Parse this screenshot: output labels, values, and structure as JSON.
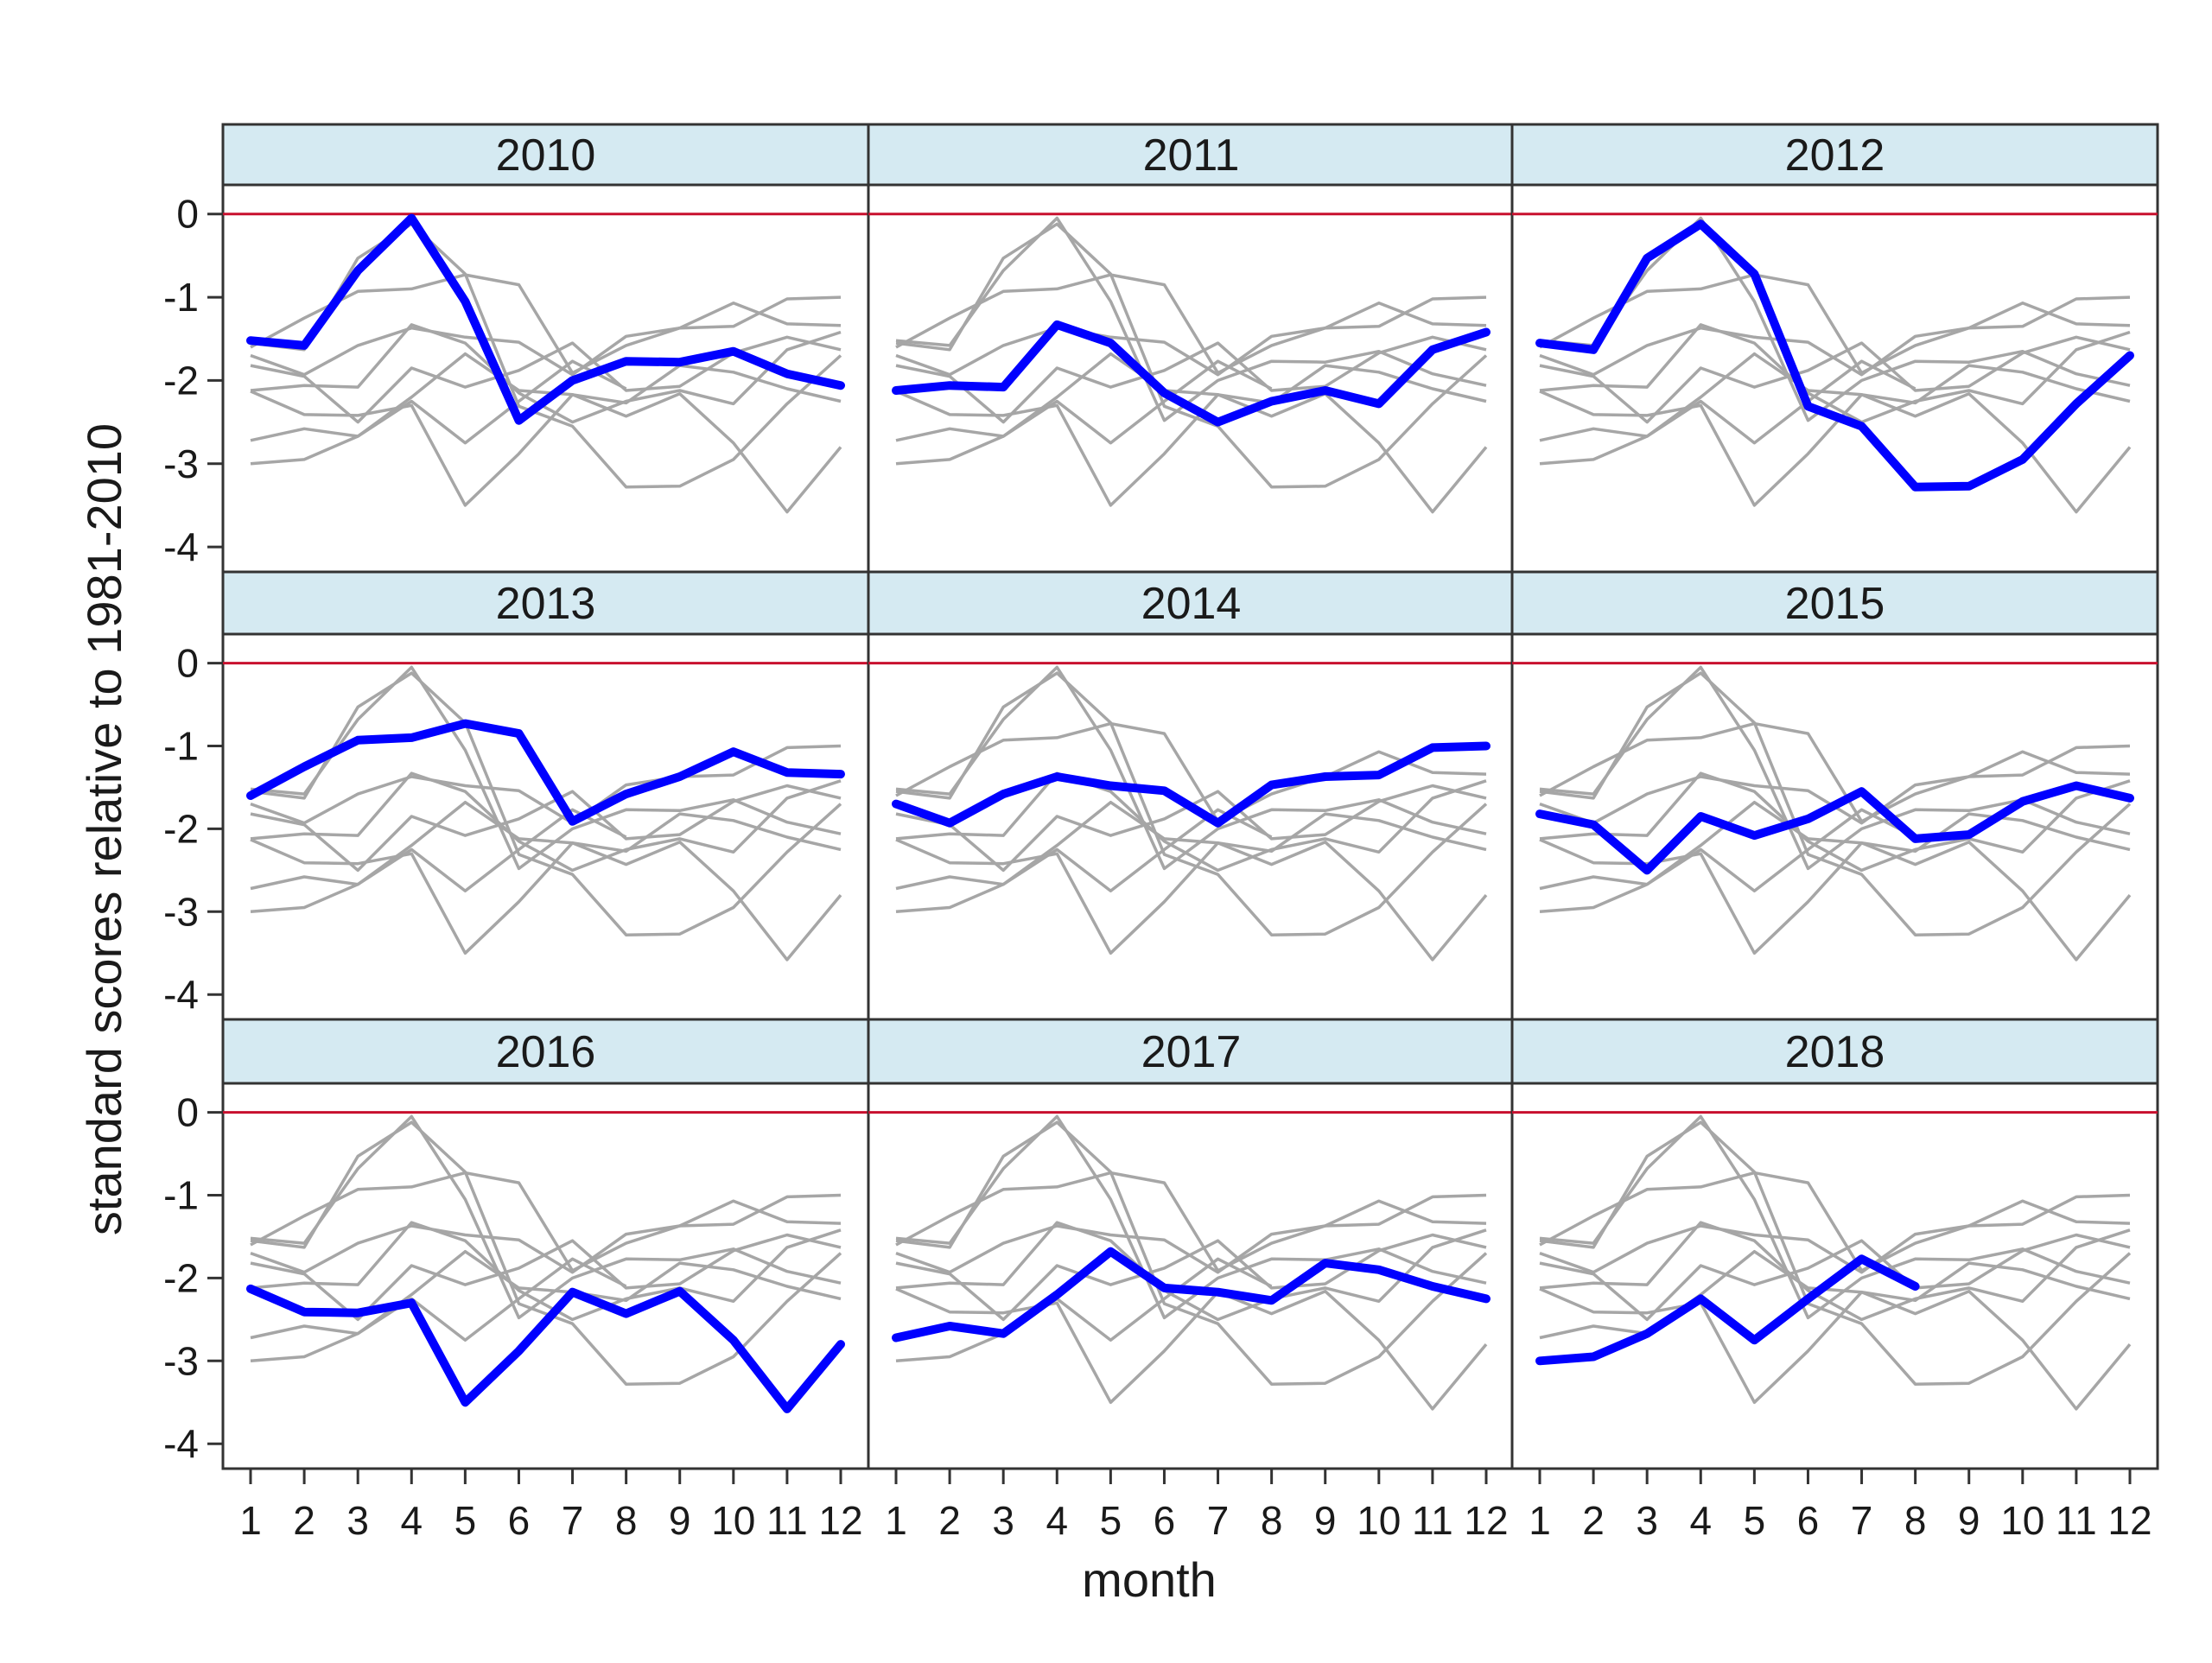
{
  "chart_data": {
    "type": "line",
    "layout": "small-multiples 3x3",
    "xlabel": "month",
    "ylabel": "standard scores relative to 1981-2010",
    "x": [
      1,
      2,
      3,
      4,
      5,
      6,
      7,
      8,
      9,
      10,
      11,
      12
    ],
    "x_tick_labels": [
      "1",
      "2",
      "3",
      "4",
      "5",
      "6",
      "7",
      "8",
      "9",
      "10",
      "11",
      "12"
    ],
    "y_ticks": [
      0,
      -1,
      -2,
      -3,
      -4
    ],
    "y_tick_labels": [
      "0",
      "-1",
      "-2",
      "-3",
      "-4"
    ],
    "ylim": [
      -4.3,
      0.35
    ],
    "reference_line": {
      "y": 0,
      "color": "#c8102e"
    },
    "colors": {
      "highlight": "#0000ff",
      "background_series": "#a6a6a6",
      "strip_fill": "#d5eaf2",
      "frame": "#333333"
    },
    "grid": false,
    "legend": "none",
    "panels": [
      {
        "label": "2010",
        "values": [
          -1.52,
          -1.58,
          -0.68,
          -0.05,
          -1.05,
          -2.48,
          -2.0,
          -1.77,
          -1.78,
          -1.65,
          -1.92,
          -2.06
        ]
      },
      {
        "label": "2011",
        "values": [
          -2.12,
          -2.06,
          -2.08,
          -1.33,
          -1.55,
          -2.15,
          -2.5,
          -2.25,
          -2.12,
          -2.28,
          -1.63,
          -1.42
        ]
      },
      {
        "label": "2012",
        "values": [
          -1.55,
          -1.63,
          -0.53,
          -0.12,
          -0.72,
          -2.31,
          -2.55,
          -3.28,
          -3.27,
          -2.95,
          -2.28,
          -1.7
        ]
      },
      {
        "label": "2013",
        "values": [
          -1.6,
          -1.25,
          -0.93,
          -0.9,
          -0.73,
          -0.85,
          -1.91,
          -1.58,
          -1.37,
          -1.07,
          -1.32,
          -1.34
        ]
      },
      {
        "label": "2014",
        "values": [
          -1.7,
          -1.93,
          -1.58,
          -1.37,
          -1.48,
          -1.54,
          -1.93,
          -1.47,
          -1.37,
          -1.35,
          -1.02,
          -1.0
        ]
      },
      {
        "label": "2015",
        "values": [
          -1.82,
          -1.95,
          -2.5,
          -1.85,
          -2.08,
          -1.88,
          -1.55,
          -2.12,
          -2.07,
          -1.67,
          -1.48,
          -1.63
        ]
      },
      {
        "label": "2016",
        "values": [
          -2.13,
          -2.41,
          -2.42,
          -2.3,
          -3.5,
          -2.88,
          -2.17,
          -2.43,
          -2.16,
          -2.75,
          -3.58,
          -2.8
        ]
      },
      {
        "label": "2017",
        "values": [
          -2.72,
          -2.58,
          -2.67,
          -2.2,
          -1.68,
          -2.12,
          -2.17,
          -2.27,
          -1.82,
          -1.9,
          -2.1,
          -2.25
        ]
      },
      {
        "label": "2018",
        "values": [
          -3.0,
          -2.95,
          -2.67,
          -2.25,
          -2.75,
          -2.25,
          -1.77,
          -2.1
        ]
      }
    ]
  }
}
